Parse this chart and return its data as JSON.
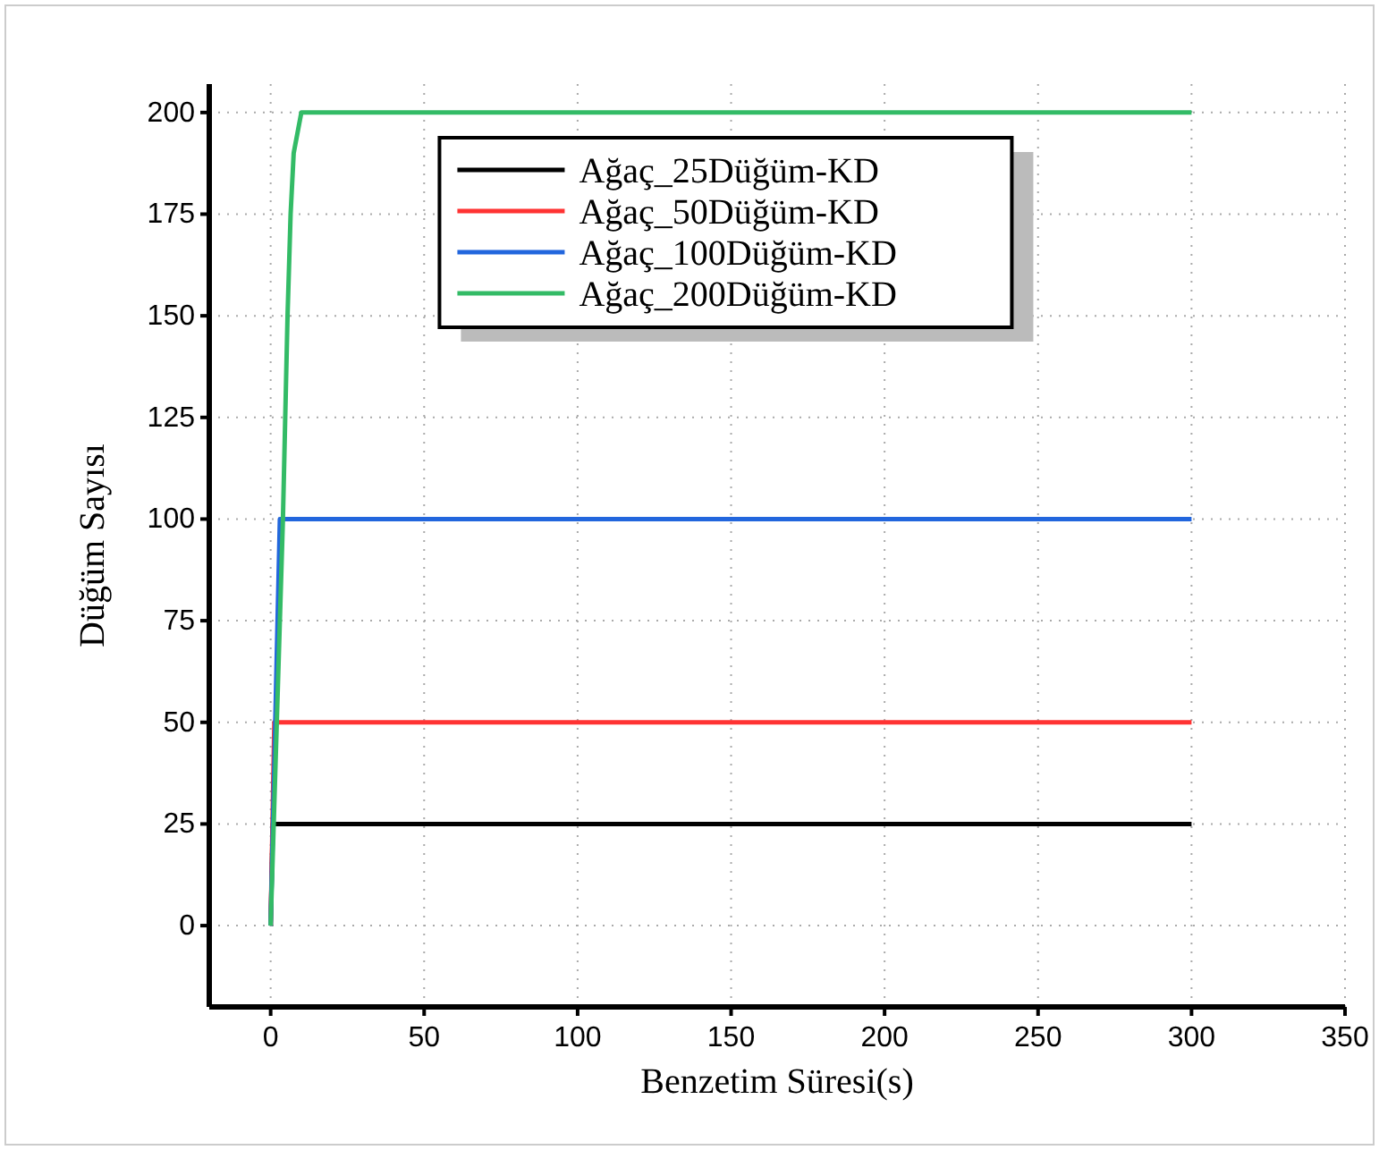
{
  "chart_data": {
    "type": "line",
    "xlabel": "Benzetim Süresi(s)",
    "ylabel": "Düğüm Sayısı",
    "xlim": [
      -20,
      350
    ],
    "ylim": [
      -20,
      207
    ],
    "xticks": [
      0,
      50,
      100,
      150,
      200,
      250,
      300,
      350
    ],
    "yticks": [
      0,
      25,
      50,
      75,
      100,
      125,
      150,
      175,
      200
    ],
    "grid": true,
    "legend": "top",
    "line_style": "solid",
    "marker": "none",
    "series": [
      {
        "name": "Ağaç_25Düğüm-KD",
        "color": "#000000",
        "x": [
          0,
          0.7,
          300
        ],
        "values": [
          0,
          25,
          25
        ]
      },
      {
        "name": "Ağaç_50Düğüm-KD",
        "color": "#ff3333",
        "x": [
          0,
          1.2,
          300
        ],
        "values": [
          0,
          50,
          50
        ]
      },
      {
        "name": "Ağaç_100Düğüm-KD",
        "color": "#2266dd",
        "x": [
          0,
          3,
          300
        ],
        "values": [
          0,
          100,
          100
        ]
      },
      {
        "name": "Ağaç_200Düğüm-KD",
        "color": "#33bb66",
        "x": [
          0,
          2,
          4,
          5.5,
          6.5,
          7.5,
          10,
          300
        ],
        "values": [
          0,
          50,
          100,
          150,
          175,
          190,
          200,
          200
        ]
      }
    ]
  }
}
